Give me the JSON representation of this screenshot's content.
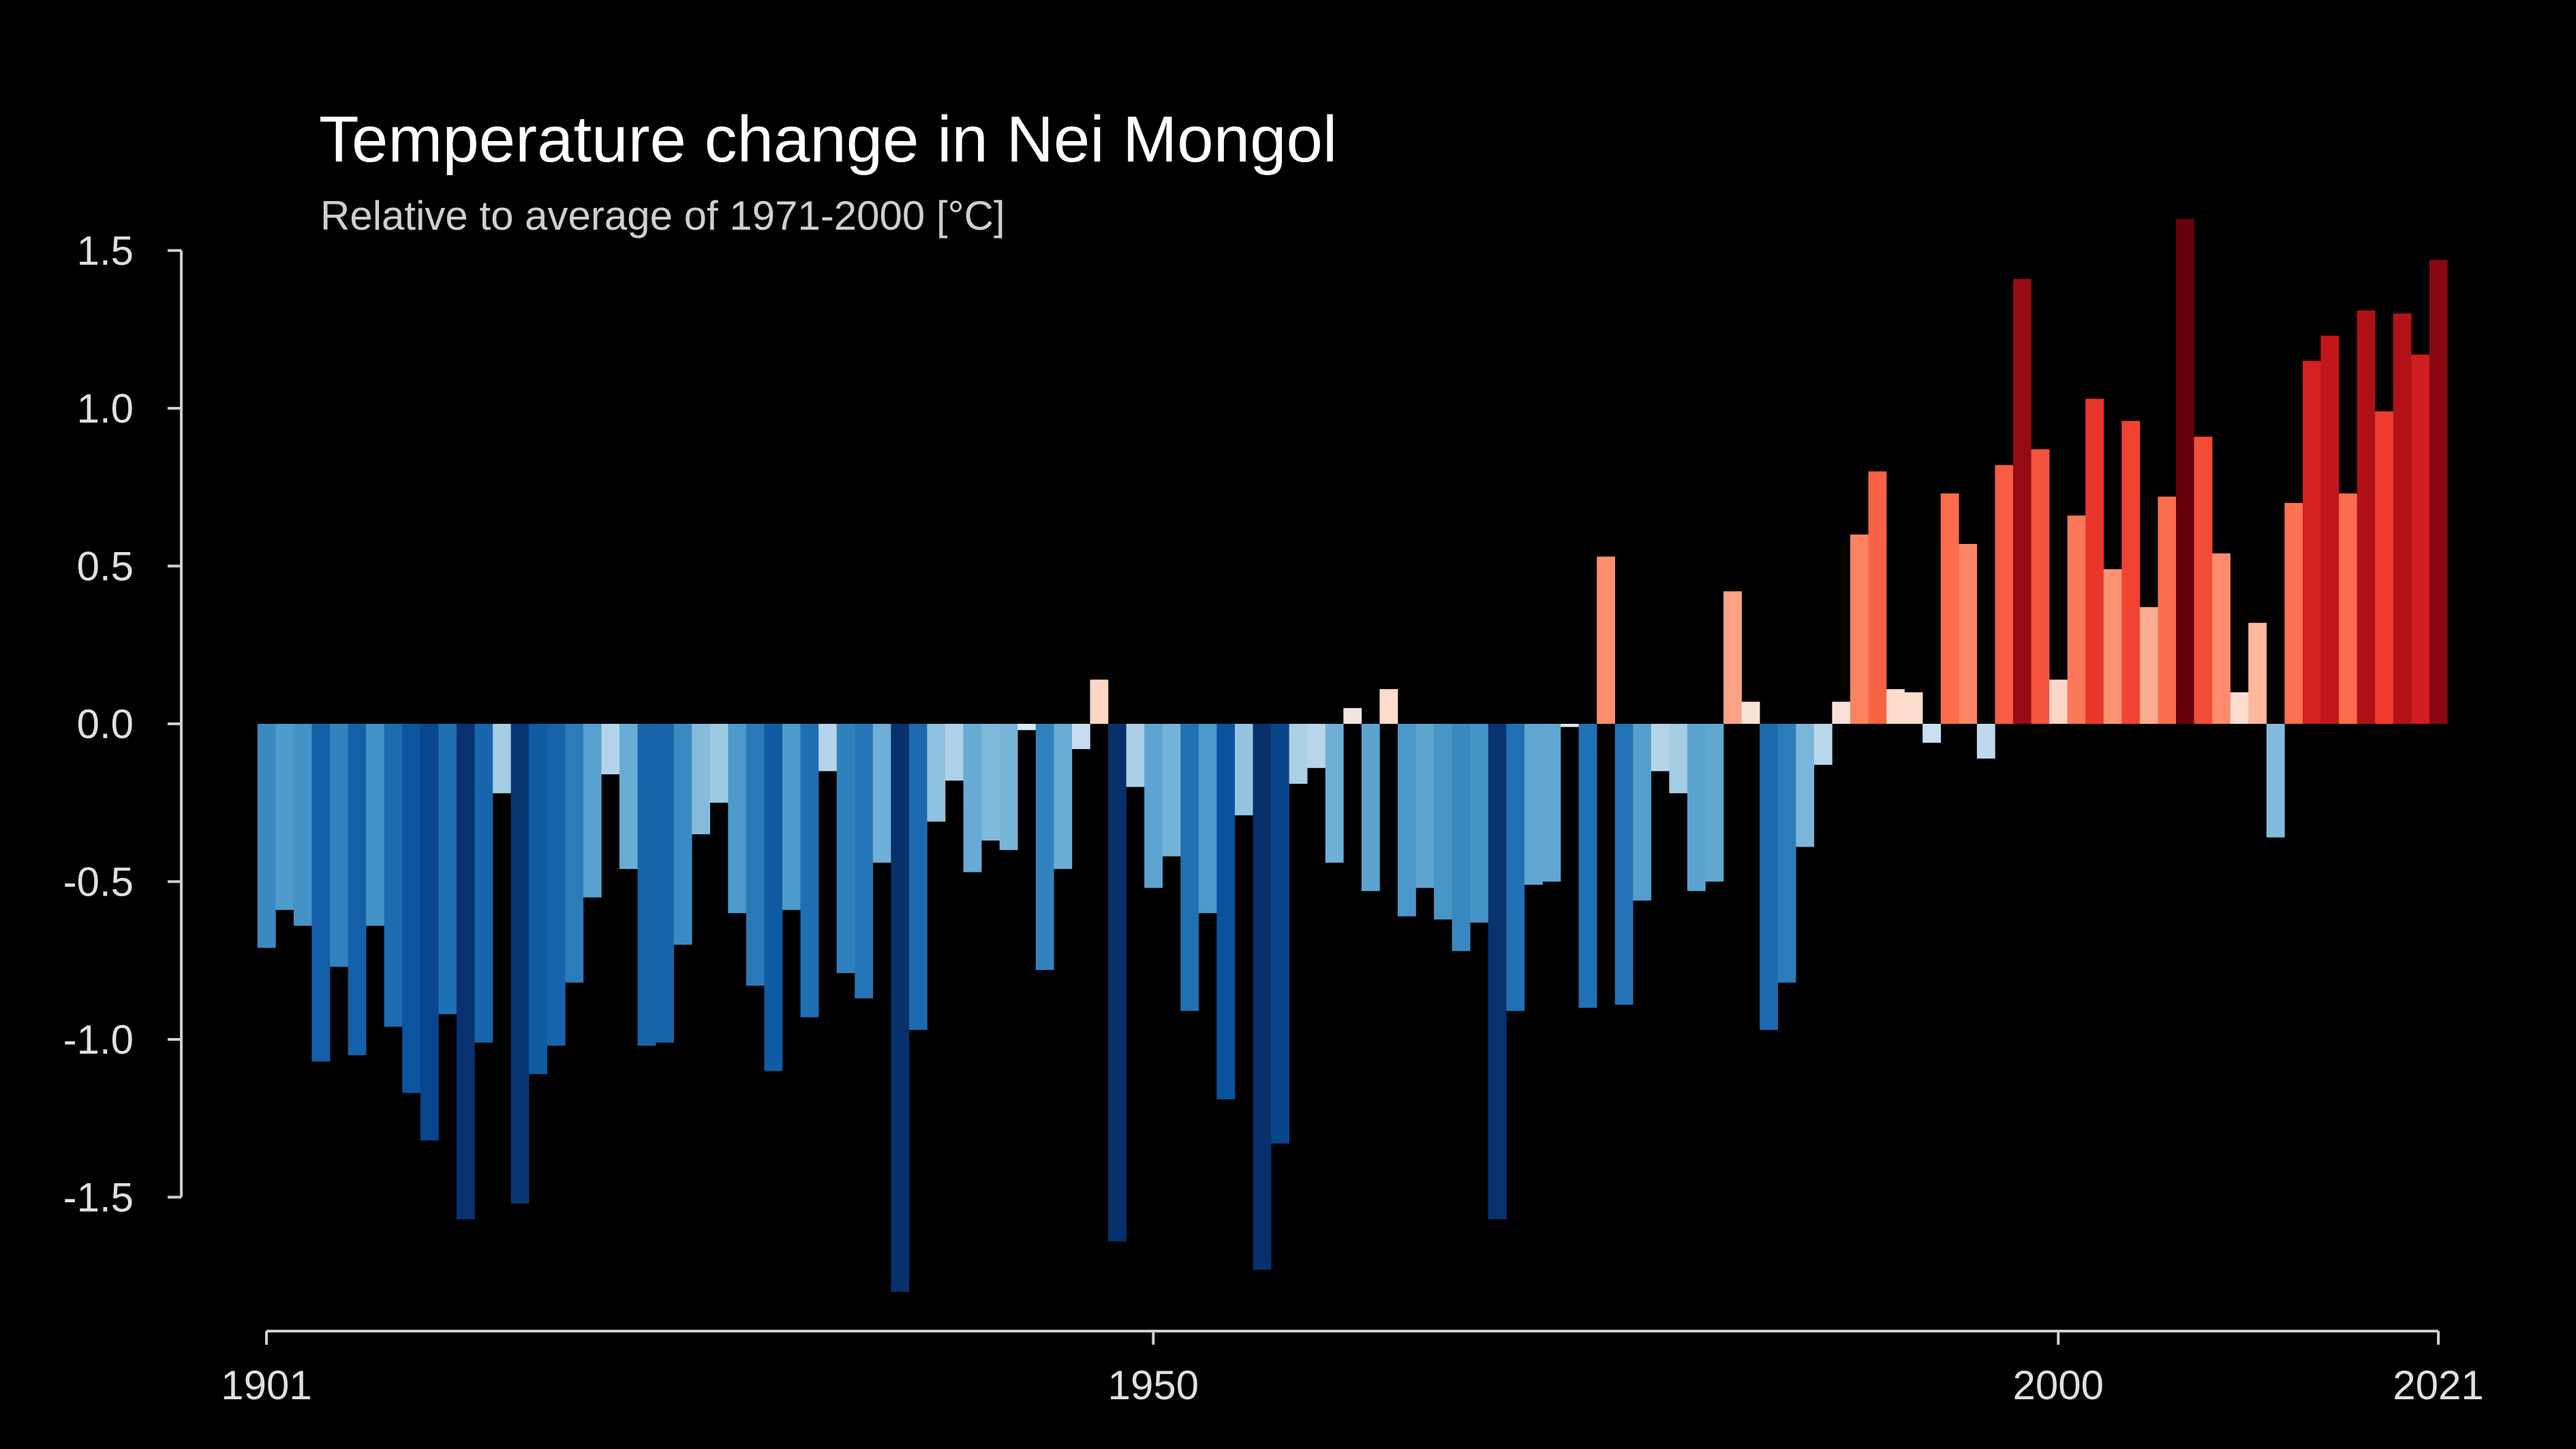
{
  "chart_data": {
    "type": "bar",
    "title": "Temperature change in Nei Mongol",
    "subtitle": "Relative to average of 1971-2000  [°C]",
    "xlabel": "",
    "ylabel": "",
    "x_start": 1901,
    "x_end": 2021,
    "ylim": [
      -1.8,
      1.65
    ],
    "y_ticks": [
      1.5,
      1.0,
      0.5,
      0.0,
      -0.5,
      -1.0,
      -1.5
    ],
    "y_tick_labels": [
      "1.5",
      "1.0",
      "0.5",
      "0.0",
      "-0.5",
      "-1.0",
      "-1.5"
    ],
    "x_ticks": [
      1901,
      1950,
      2000,
      2021
    ],
    "x_tick_labels": [
      "1901",
      "1950",
      "2000",
      "2021"
    ],
    "grid": false,
    "legend": "none",
    "years": [
      1901,
      1902,
      1903,
      1904,
      1905,
      1906,
      1907,
      1908,
      1909,
      1910,
      1911,
      1912,
      1913,
      1914,
      1915,
      1916,
      1917,
      1918,
      1919,
      1920,
      1921,
      1922,
      1923,
      1924,
      1925,
      1926,
      1927,
      1928,
      1929,
      1930,
      1931,
      1932,
      1933,
      1934,
      1935,
      1936,
      1937,
      1938,
      1939,
      1940,
      1941,
      1942,
      1943,
      1944,
      1945,
      1946,
      1947,
      1948,
      1949,
      1950,
      1951,
      1952,
      1953,
      1954,
      1955,
      1956,
      1957,
      1958,
      1959,
      1960,
      1961,
      1962,
      1963,
      1964,
      1965,
      1966,
      1967,
      1968,
      1969,
      1970,
      1971,
      1972,
      1973,
      1974,
      1975,
      1976,
      1977,
      1978,
      1979,
      1980,
      1981,
      1982,
      1983,
      1984,
      1985,
      1986,
      1987,
      1988,
      1989,
      1990,
      1991,
      1992,
      1993,
      1994,
      1995,
      1996,
      1997,
      1998,
      1999,
      2000,
      2001,
      2002,
      2003,
      2004,
      2005,
      2006,
      2007,
      2008,
      2009,
      2010,
      2011,
      2012,
      2013,
      2014,
      2015,
      2016,
      2017,
      2018,
      2019,
      2020,
      2021
    ],
    "values": [
      -0.71,
      -0.59,
      -0.64,
      -1.07,
      -0.77,
      -1.05,
      -0.64,
      -0.96,
      -1.17,
      -1.32,
      -0.92,
      -1.57,
      -1.01,
      -0.22,
      -1.52,
      -1.11,
      -1.02,
      -0.82,
      -0.55,
      -0.16,
      -0.46,
      -1.02,
      -1.01,
      -0.7,
      -0.35,
      -0.25,
      -0.6,
      -0.83,
      -1.1,
      -0.59,
      -0.93,
      -0.15,
      -0.79,
      -0.87,
      -0.44,
      -1.8,
      -0.97,
      -0.31,
      -0.18,
      -0.47,
      -0.37,
      -0.4,
      -0.02,
      -0.78,
      -0.46,
      -0.08,
      0.14,
      -1.64,
      -0.2,
      -0.52,
      -0.42,
      -0.91,
      -0.6,
      -1.19,
      -0.29,
      -1.73,
      -1.33,
      -0.19,
      -0.14,
      -0.44,
      0.05,
      -0.53,
      0.11,
      -0.61,
      -0.52,
      -0.62,
      -0.72,
      -0.63,
      -1.57,
      -0.91,
      -0.51,
      -0.5,
      -0.01,
      -0.9,
      0.53,
      -0.89,
      -0.56,
      -0.15,
      -0.22,
      -0.53,
      -0.5,
      0.42,
      0.07,
      -0.97,
      -0.82,
      -0.39,
      -0.13,
      0.07,
      0.6,
      0.8,
      0.11,
      0.1,
      -0.06,
      0.73,
      0.57,
      -0.11,
      0.82,
      1.41,
      0.87,
      0.14,
      0.66,
      1.03,
      0.49,
      0.96,
      0.37,
      0.72,
      1.6,
      0.91,
      0.54,
      0.1,
      0.32,
      -0.36,
      0.7,
      1.15,
      1.23,
      0.73,
      1.31,
      0.99,
      1.3,
      1.17,
      1.47
    ]
  }
}
